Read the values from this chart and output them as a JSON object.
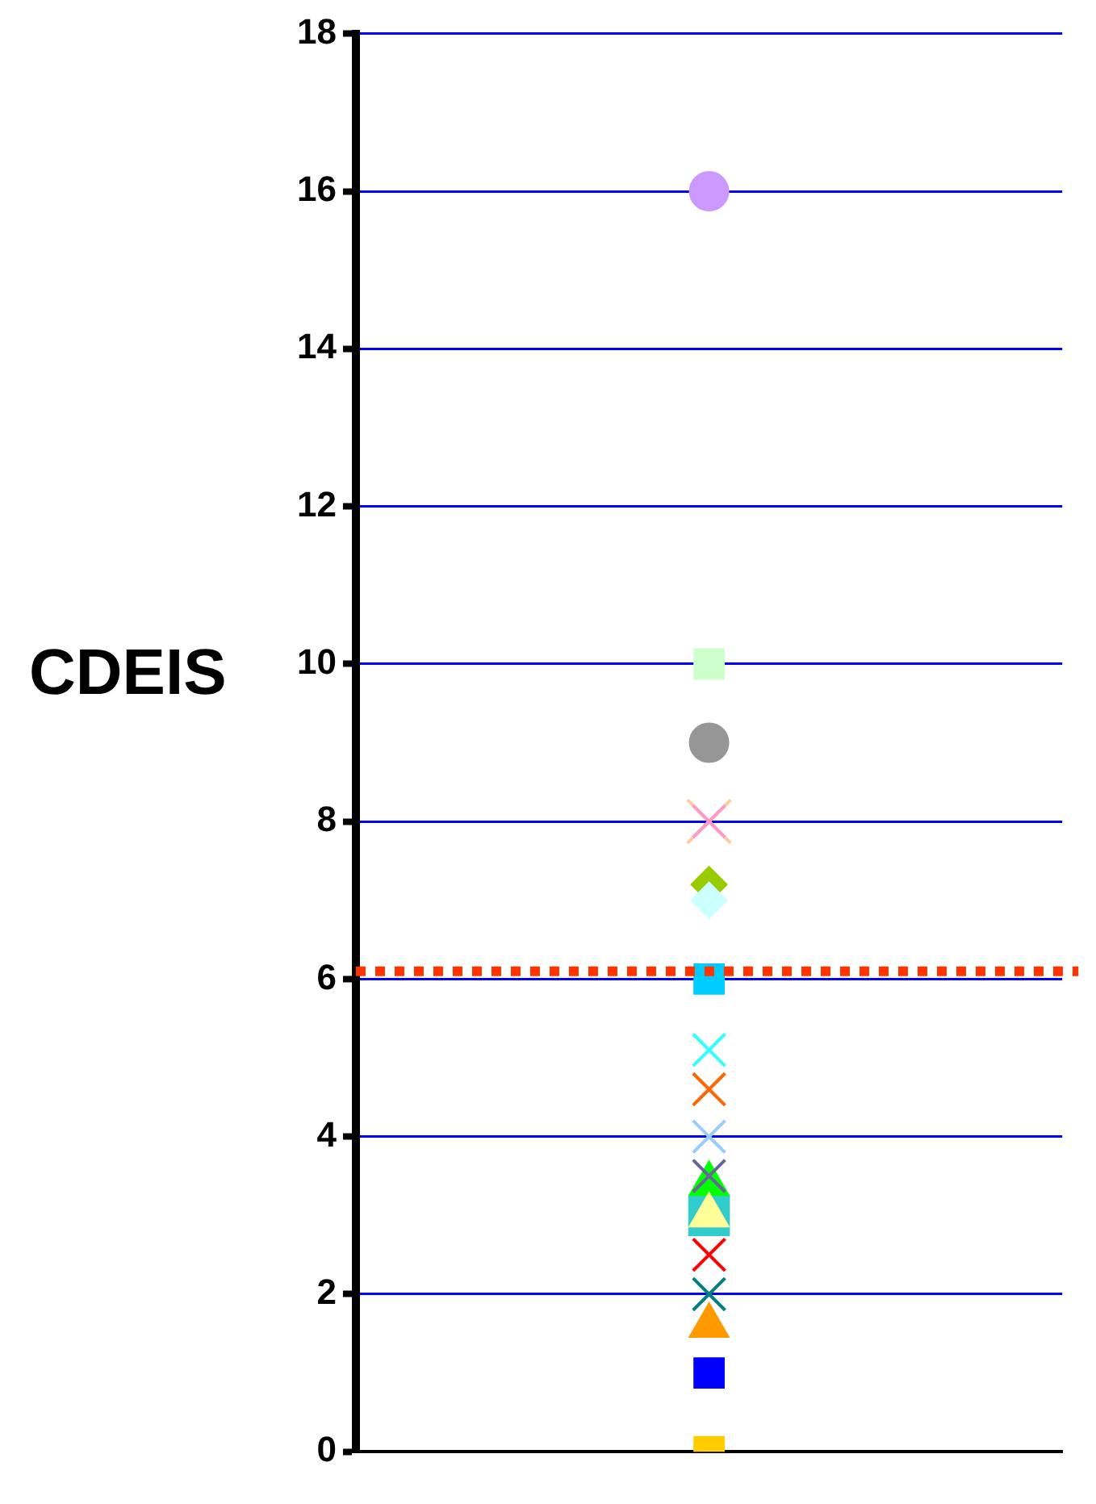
{
  "chart_data": {
    "type": "scatter",
    "ylabel": "CDEIS",
    "categories": [
      null
    ],
    "ylim": [
      0,
      18
    ],
    "yticks": [
      0,
      2,
      4,
      6,
      8,
      10,
      12,
      14,
      16,
      18
    ],
    "grid": "y",
    "legend": false,
    "ref_lines": [
      {
        "axis": "y",
        "value": 6.1,
        "color": "#ff3300",
        "line_style": "dotted"
      }
    ],
    "series": [
      {
        "color": "#cc99ff",
        "values": [
          16.0
        ],
        "marker": "circle"
      },
      {
        "color": "#ccffcc",
        "values": [
          10.0
        ],
        "marker": "square"
      },
      {
        "color": "#969696",
        "values": [
          9.0
        ],
        "marker": "circle"
      },
      {
        "color": "#ff99cc",
        "values": [
          8.0
        ],
        "marker": "cross"
      },
      {
        "color": "#ffcc99",
        "values": [
          8.0
        ],
        "marker": "cross"
      },
      {
        "color": "#ccffff",
        "values": [
          7.0
        ],
        "marker": "diamond"
      },
      {
        "color": "#99cc00",
        "values": [
          7.2
        ],
        "marker": "diamond"
      },
      {
        "color": "#00ccff",
        "values": [
          6.0
        ],
        "marker": "square"
      },
      {
        "color": "#33ffff",
        "values": [
          5.1
        ],
        "marker": "cross"
      },
      {
        "color": "#ff6600",
        "values": [
          4.6
        ],
        "marker": "cross"
      },
      {
        "color": "#99ccff",
        "values": [
          4.0
        ],
        "marker": "cross"
      },
      {
        "color": "#666699",
        "values": [
          3.5
        ],
        "marker": "cross"
      },
      {
        "color": "#ffff99",
        "values": [
          3.0
        ],
        "marker": "triangle"
      },
      {
        "color": "#00ff00",
        "values": [
          3.4
        ],
        "marker": "triangle"
      },
      {
        "color": "#33cccc",
        "values": [
          3.0
        ],
        "marker": "square"
      },
      {
        "color": "#ff0000",
        "values": [
          2.5
        ],
        "marker": "cross"
      },
      {
        "color": "#008080",
        "values": [
          2.0
        ],
        "marker": "cross"
      },
      {
        "color": "#ff9900",
        "values": [
          1.6
        ],
        "marker": "triangle"
      },
      {
        "color": "#0000ff",
        "values": [
          1.0
        ],
        "marker": "square"
      },
      {
        "color": "#ffcc00",
        "values": [
          0.0
        ],
        "marker": "square"
      }
    ]
  }
}
